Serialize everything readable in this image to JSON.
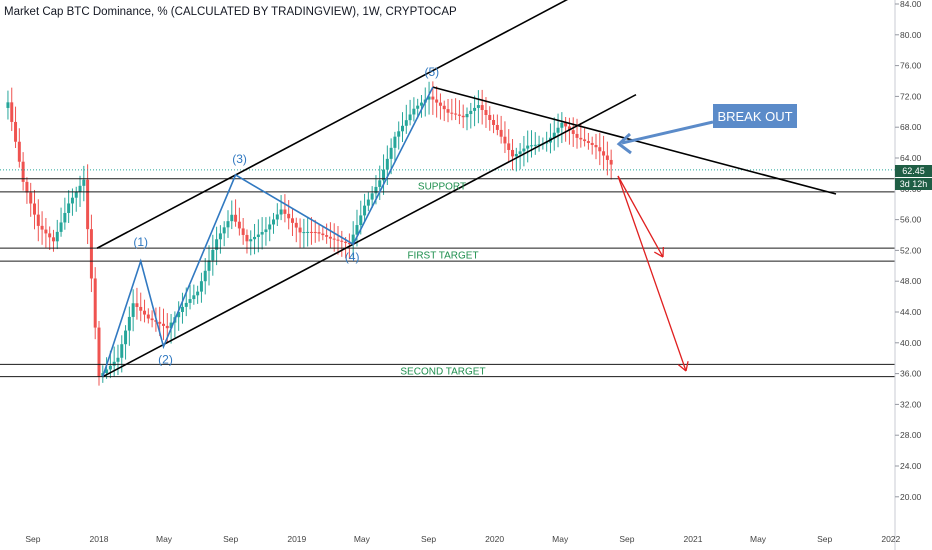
{
  "header": {
    "title": "Market Cap BTC Dominance, % (CALCULATED BY TRADINGVIEW), 1W, CRYPTOCAP"
  },
  "price_tags": {
    "current_value": "62.45",
    "countdown": "3d 12h"
  },
  "colors": {
    "up": "#26a69a",
    "down": "#ef5350",
    "wave": "#3179c1",
    "target_arrow": "#e02020",
    "level_text": "#1e8f4e",
    "callout_bg": "#5b8bc9",
    "tag_bg": "#1f5e45"
  },
  "annotations": {
    "wave_labels": [
      "(1)",
      "(2)",
      "(3)",
      "(4)",
      "(5)"
    ],
    "support": "SUPPORT",
    "first_target": "FIRST TARGET",
    "second_target": "SECOND TARGET",
    "callout": "BREAK OUT"
  },
  "chart_data": {
    "type": "candlestick",
    "title": "Market Cap BTC Dominance, % (CALCULATED BY TRADINGVIEW), 1W, CRYPTOCAP",
    "y_axis": {
      "ticks": [
        20.0,
        24.0,
        28.0,
        32.0,
        36.0,
        40.0,
        44.0,
        48.0,
        52.0,
        56.0,
        60.0,
        64.0,
        68.0,
        72.0,
        76.0,
        80.0,
        84.0
      ],
      "range": [
        17.0,
        85.0
      ],
      "position": "right"
    },
    "x_axis": {
      "ticks": [
        "Sep",
        "2018",
        "May",
        "Sep",
        "2019",
        "May",
        "Sep",
        "2020",
        "May",
        "Sep",
        "2021",
        "May",
        "Sep",
        "2022"
      ],
      "tick_dates": [
        "2017-09-01",
        "2018-01-01",
        "2018-05-01",
        "2018-09-01",
        "2019-01-01",
        "2019-05-01",
        "2019-09-01",
        "2020-01-01",
        "2020-05-01",
        "2020-09-01",
        "2021-01-01",
        "2021-05-01",
        "2021-09-01",
        "2022-01-01"
      ],
      "interval": "1W"
    },
    "last_value": 62.45,
    "horizontal_levels": [
      {
        "label": "SUPPORT",
        "values": [
          61.3,
          59.6
        ]
      },
      {
        "label": "FIRST TARGET",
        "values": [
          52.3,
          50.6
        ]
      },
      {
        "label": "SECOND TARGET",
        "values": [
          37.2,
          35.6
        ]
      }
    ],
    "elliott_waves": [
      {
        "label": "",
        "date": "2018-01-08",
        "value": 35.6
      },
      {
        "label": "(1)",
        "date": "2018-03-19",
        "value": 50.6
      },
      {
        "label": "(2)",
        "date": "2018-04-30",
        "value": 39.5
      },
      {
        "label": "(3)",
        "date": "2018-09-10",
        "value": 61.8
      },
      {
        "label": "(4)",
        "date": "2019-04-15",
        "value": 52.8
      },
      {
        "label": "(5)",
        "date": "2019-09-09",
        "value": 73.2
      }
    ],
    "ohlc_weekly_close": [
      {
        "date": "2017-07-17",
        "close": 70.5
      },
      {
        "date": "2017-08-14",
        "close": 60.0
      },
      {
        "date": "2017-09-11",
        "close": 54.5
      },
      {
        "date": "2017-10-09",
        "close": 53.0
      },
      {
        "date": "2017-11-06",
        "close": 58.5
      },
      {
        "date": "2017-12-04",
        "close": 62.0
      },
      {
        "date": "2018-01-01",
        "close": 36.5
      },
      {
        "date": "2018-02-05",
        "close": 38.5
      },
      {
        "date": "2018-03-05",
        "close": 45.0
      },
      {
        "date": "2018-04-02",
        "close": 42.5
      },
      {
        "date": "2018-05-07",
        "close": 41.0
      },
      {
        "date": "2018-06-04",
        "close": 44.0
      },
      {
        "date": "2018-07-02",
        "close": 46.5
      },
      {
        "date": "2018-08-06",
        "close": 54.0
      },
      {
        "date": "2018-09-03",
        "close": 57.5
      },
      {
        "date": "2018-10-01",
        "close": 54.0
      },
      {
        "date": "2018-11-05",
        "close": 55.0
      },
      {
        "date": "2018-12-03",
        "close": 57.0
      },
      {
        "date": "2019-01-07",
        "close": 53.5
      },
      {
        "date": "2019-02-04",
        "close": 53.5
      },
      {
        "date": "2019-03-04",
        "close": 53.0
      },
      {
        "date": "2019-04-08",
        "close": 53.0
      },
      {
        "date": "2019-05-06",
        "close": 58.5
      },
      {
        "date": "2019-06-03",
        "close": 62.0
      },
      {
        "date": "2019-07-01",
        "close": 67.5
      },
      {
        "date": "2019-08-05",
        "close": 70.5
      },
      {
        "date": "2019-09-02",
        "close": 71.5
      },
      {
        "date": "2019-10-07",
        "close": 69.0
      },
      {
        "date": "2019-11-04",
        "close": 68.5
      },
      {
        "date": "2019-12-02",
        "close": 70.5
      },
      {
        "date": "2020-01-06",
        "close": 68.0
      },
      {
        "date": "2020-02-03",
        "close": 65.0
      },
      {
        "date": "2020-03-02",
        "close": 66.5
      },
      {
        "date": "2020-04-06",
        "close": 66.5
      },
      {
        "date": "2020-05-04",
        "close": 68.5
      },
      {
        "date": "2020-06-01",
        "close": 66.0
      },
      {
        "date": "2020-07-06",
        "close": 64.5
      },
      {
        "date": "2020-08-03",
        "close": 62.45
      }
    ]
  }
}
